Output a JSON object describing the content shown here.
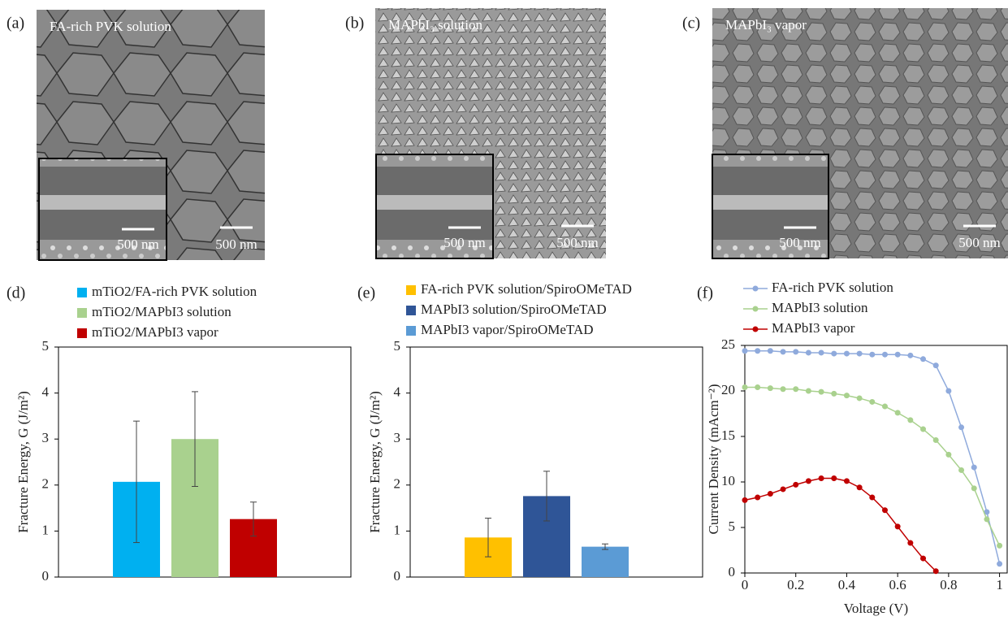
{
  "images": [
    {
      "panel": "(a)",
      "title": "FA-rich PVK solution",
      "scale": "500 nm",
      "inset_scale": "500 nm"
    },
    {
      "panel": "(b)",
      "title": "MAPbI₃ solution",
      "scale": "500 nm",
      "inset_scale": "500 nm"
    },
    {
      "panel": "(c)",
      "title": "MAPbI₃ vapor",
      "scale": "500 nm",
      "inset_scale": "500 nm"
    }
  ],
  "chart_data": [
    {
      "type": "bar",
      "panel": "(d)",
      "ylabel": "Fracture Energy, G (J/m²)",
      "ylim": [
        0,
        5
      ],
      "yticks": [
        0,
        1,
        2,
        3,
        4,
        5
      ],
      "series": [
        {
          "name": "mTiO2/FA-rich PVK solution",
          "color": "#00b0f0",
          "values": [
            2.07
          ],
          "errors": [
            1.32
          ]
        },
        {
          "name": "mTiO2/MAPbI3 solution",
          "color": "#a9d18e",
          "values": [
            3.0
          ],
          "errors": [
            1.03
          ]
        },
        {
          "name": "mTiO2/MAPbI3 vapor",
          "color": "#c00000",
          "values": [
            1.26
          ],
          "errors": [
            0.37
          ]
        }
      ]
    },
    {
      "type": "bar",
      "panel": "(e)",
      "ylabel": "Fracture Energy, G (J/m²)",
      "ylim": [
        0,
        5
      ],
      "yticks": [
        0,
        1,
        2,
        3,
        4,
        5
      ],
      "series": [
        {
          "name": "FA-rich PVK solution/SpiroOMeTAD",
          "color": "#ffc000",
          "values": [
            0.86
          ],
          "errors": [
            0.42
          ]
        },
        {
          "name": "MAPbI3 solution/SpiroOMeTAD",
          "color": "#2f5597",
          "values": [
            1.76
          ],
          "errors": [
            0.54
          ]
        },
        {
          "name": "MAPbI3 vapor/SpiroOMeTAD",
          "color": "#5b9bd5",
          "values": [
            0.66
          ],
          "errors": [
            0.06
          ]
        }
      ]
    },
    {
      "type": "line",
      "panel": "(f)",
      "xlabel": "Voltage (V)",
      "ylabel": "Current Density (mAcm⁻²)",
      "xlim": [
        0,
        1.03
      ],
      "xticks": [
        0,
        0.2,
        0.4,
        0.6,
        0.8,
        1
      ],
      "ylim": [
        0,
        25
      ],
      "yticks": [
        0,
        5,
        10,
        15,
        20,
        25
      ],
      "x": [
        0,
        0.05,
        0.1,
        0.15,
        0.2,
        0.25,
        0.3,
        0.35,
        0.4,
        0.45,
        0.5,
        0.55,
        0.6,
        0.65,
        0.7,
        0.75,
        0.8,
        0.85,
        0.9,
        0.95,
        1
      ],
      "series": [
        {
          "name": "FA-rich PVK solution",
          "color": "#8faadc",
          "values": [
            24.4,
            24.4,
            24.4,
            24.3,
            24.3,
            24.2,
            24.2,
            24.1,
            24.1,
            24.1,
            24.0,
            24.0,
            24.0,
            23.9,
            23.5,
            22.8,
            20.0,
            16.0,
            11.6,
            6.7,
            1.0
          ]
        },
        {
          "name": "MAPbI3 solution",
          "color": "#a9d18e",
          "values": [
            20.4,
            20.4,
            20.3,
            20.2,
            20.2,
            20.0,
            19.9,
            19.7,
            19.5,
            19.2,
            18.8,
            18.3,
            17.6,
            16.8,
            15.8,
            14.6,
            13.0,
            11.3,
            9.3,
            5.9,
            3.0
          ]
        },
        {
          "name": "MAPbI3 vapor",
          "color": "#c00000",
          "values": [
            8.0,
            8.3,
            8.7,
            9.2,
            9.7,
            10.1,
            10.4,
            10.4,
            10.1,
            9.4,
            8.3,
            6.9,
            5.1,
            3.3,
            1.6,
            0.2,
            null,
            null,
            null,
            null,
            null
          ]
        }
      ]
    }
  ]
}
